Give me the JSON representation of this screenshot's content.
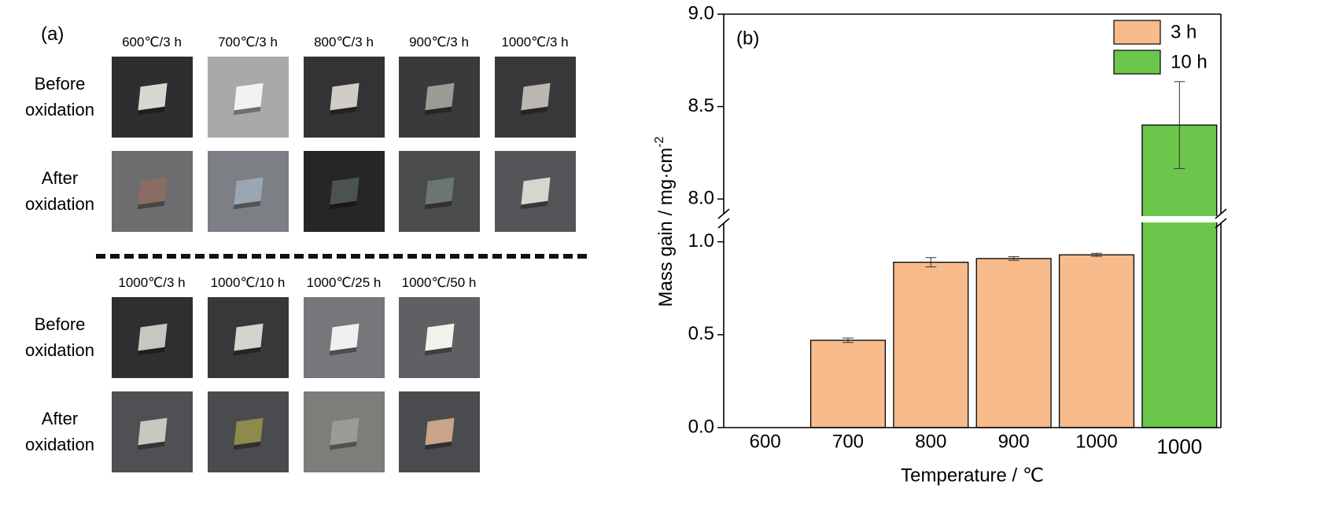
{
  "panel_a": {
    "label": "(a)",
    "top": {
      "columns": [
        "600℃/3 h",
        "700℃/3 h",
        "800℃/3 h",
        "900℃/3 h",
        "1000℃/3 h"
      ],
      "rows": [
        "Before oxidation",
        "After oxidation"
      ]
    },
    "bottom": {
      "columns": [
        "1000℃/3 h",
        "1000℃/10 h",
        "1000℃/25 h",
        "1000℃/50 h"
      ],
      "rows": [
        "Before oxidation",
        "After oxidation"
      ]
    }
  },
  "chart_data": {
    "type": "bar",
    "panel_label": "(b)",
    "categories": [
      "600",
      "700",
      "800",
      "900",
      "1000",
      "1000"
    ],
    "xlabel": "Temperature / ℃",
    "ylabel": "Mass gain / mg·cm",
    "ylabel_superscript": "-2",
    "series": [
      {
        "name": "3 h",
        "color": "#f8bb8c",
        "values": [
          null,
          0.47,
          0.89,
          0.91,
          0.93,
          null
        ],
        "errors": [
          null,
          0.012,
          0.025,
          0.01,
          0.008,
          null
        ]
      },
      {
        "name": "10 h",
        "color": "#6cc64b",
        "values": [
          null,
          null,
          null,
          null,
          null,
          8.4
        ],
        "errors": [
          null,
          null,
          null,
          null,
          null,
          0.235
        ]
      }
    ],
    "y_segments": [
      {
        "ylim": [
          0,
          1.1
        ],
        "yticks": [
          {
            "value": 0,
            "label": "0.0"
          },
          0.5,
          {
            "value": 1,
            "label": "1.0"
          }
        ]
      },
      {
        "ylim": [
          7.92,
          9.0
        ],
        "yticks": [
          {
            "value": 8,
            "label": "8.0"
          },
          8.5,
          {
            "value": 9,
            "label": "9.0"
          }
        ]
      }
    ],
    "y_break": true,
    "legend": "upper right"
  }
}
